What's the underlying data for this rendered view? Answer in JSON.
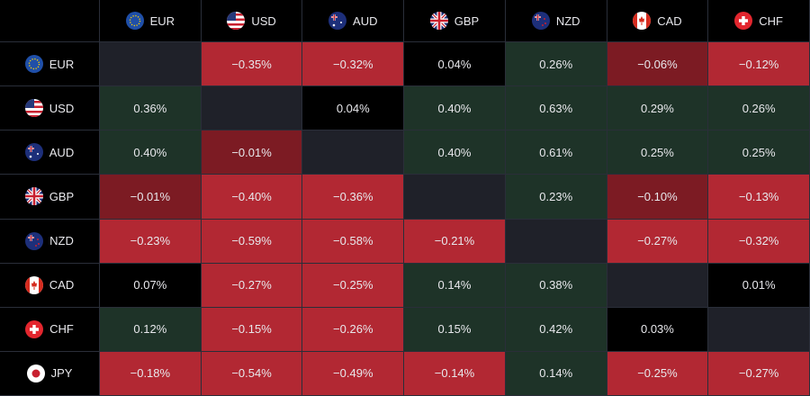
{
  "table": {
    "columns": [
      "EUR",
      "USD",
      "AUD",
      "GBP",
      "NZD",
      "CAD",
      "CHF"
    ],
    "rows": [
      {
        "label": "EUR",
        "cells": [
          null,
          "−0.35%",
          "−0.32%",
          "0.04%",
          "0.26%",
          "−0.06%",
          "−0.12%"
        ]
      },
      {
        "label": "USD",
        "cells": [
          "0.36%",
          null,
          "0.04%",
          "0.40%",
          "0.63%",
          "0.29%",
          "0.26%"
        ]
      },
      {
        "label": "AUD",
        "cells": [
          "0.40%",
          "−0.01%",
          null,
          "0.40%",
          "0.61%",
          "0.25%",
          "0.25%"
        ]
      },
      {
        "label": "GBP",
        "cells": [
          "−0.01%",
          "−0.40%",
          "−0.36%",
          null,
          "0.23%",
          "−0.10%",
          "−0.13%"
        ]
      },
      {
        "label": "NZD",
        "cells": [
          "−0.23%",
          "−0.59%",
          "−0.58%",
          "−0.21%",
          null,
          "−0.27%",
          "−0.32%"
        ]
      },
      {
        "label": "CAD",
        "cells": [
          "0.07%",
          "−0.27%",
          "−0.25%",
          "0.14%",
          "0.38%",
          null,
          "0.01%"
        ]
      },
      {
        "label": "CHF",
        "cells": [
          "0.12%",
          "−0.15%",
          "−0.26%",
          "0.15%",
          "0.42%",
          "0.03%",
          null
        ]
      },
      {
        "label": "JPY",
        "cells": [
          "−0.18%",
          "−0.54%",
          "−0.49%",
          "−0.14%",
          "0.14%",
          "−0.25%",
          "−0.27%"
        ]
      }
    ]
  }
}
